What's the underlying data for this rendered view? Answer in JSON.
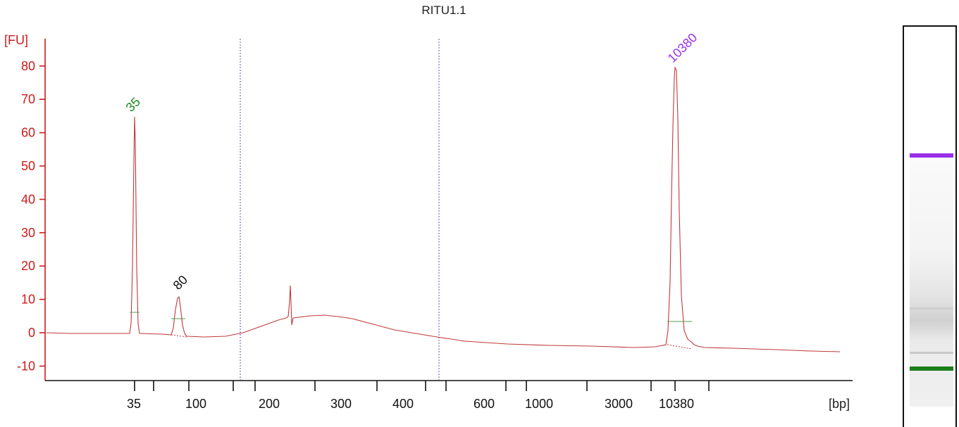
{
  "chart_data": {
    "type": "line",
    "title": "RITU1.1",
    "ylabel": "[FU]",
    "xlabel": "[bp]",
    "ylim": [
      -14,
      86
    ],
    "yticks": [
      -10,
      0,
      10,
      20,
      30,
      40,
      50,
      60,
      70,
      80
    ],
    "x_tick_labels": [
      "35",
      "100",
      "200",
      "300",
      "400",
      "600",
      "1000",
      "3000",
      "10380"
    ],
    "peaks": [
      {
        "label": "35",
        "size_bp": 35,
        "height_fu": 64.5,
        "color": "#1a8a1a"
      },
      {
        "label": "80",
        "size_bp": 80,
        "height_fu": 10.5,
        "color": "#111111"
      },
      {
        "label": "10380",
        "size_bp": 10380,
        "height_fu": 79.5,
        "color": "#9b30e8"
      }
    ],
    "trace_color": "#c0393b",
    "axis_color": "#d01a1a",
    "gel_bands": [
      {
        "label": "10380",
        "color": "#9b30e8"
      },
      {
        "label": "35",
        "color": "#1a7f1a"
      }
    ]
  }
}
